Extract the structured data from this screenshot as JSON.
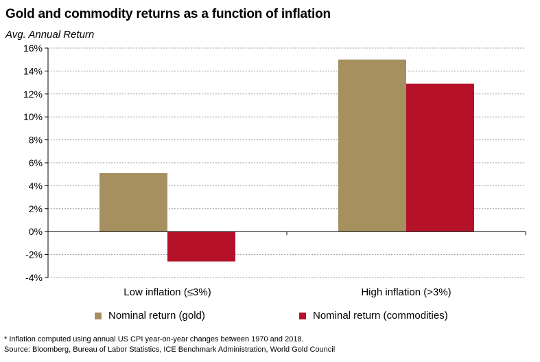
{
  "title": "Gold and commodity returns as a function of inflation",
  "colors": {
    "gold": "#a69060",
    "commodities": "#b5122a",
    "grid": "#9a9a9a",
    "axis": "#000000"
  },
  "chart_data": {
    "type": "bar",
    "title": "Gold and commodity returns as a function of inflation",
    "xlabel": "",
    "ylabel": "Avg. Annual Return",
    "ylim": [
      -4,
      16
    ],
    "ytick_step": 2,
    "ytick_labels": [
      "-4%",
      "-2%",
      "0%",
      "2%",
      "4%",
      "6%",
      "8%",
      "10%",
      "12%",
      "14%",
      "16%"
    ],
    "grid": true,
    "legend_position": "bottom",
    "categories": [
      "Low inflation (≤3%)",
      "High inflation (>3%)"
    ],
    "series": [
      {
        "name": "Nominal return (gold)",
        "color_key": "gold",
        "values": [
          5.1,
          15.0
        ]
      },
      {
        "name": "Nominal return (commodities)",
        "color_key": "commodities",
        "values": [
          -2.6,
          12.9
        ]
      }
    ]
  },
  "footnotes": {
    "inflation": "* Inflation computed using annual US CPI year-on-year changes between 1970 and 2018.",
    "source": "Source: Bloomberg, Bureau of Labor Statistics, ICE Benchmark Administration, World Gold Council"
  }
}
